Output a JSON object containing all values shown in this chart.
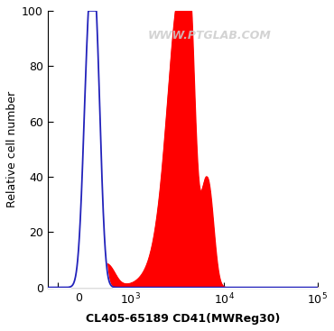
{
  "ylabel": "Relative cell number",
  "xlabel": "CL405-65189 CD41(MWReg30)",
  "ylim": [
    0,
    100
  ],
  "yticks": [
    0,
    20,
    40,
    60,
    80,
    100
  ],
  "watermark": "WWW.PTGLAB.COM",
  "blue_color": "#2222BB",
  "red_color": "#FF0000",
  "background_color": "#ffffff",
  "linthresh": 1000,
  "linscale": 0.5,
  "xlim_min": -600,
  "xlim_max": 100000,
  "blue_peaks": [
    {
      "mu": 180,
      "sigma": 100,
      "amp": 76
    },
    {
      "mu": 330,
      "sigma": 95,
      "amp": 79
    }
  ],
  "red_small_peaks": [
    {
      "mu": 130,
      "sigma": 85,
      "amp": 10
    },
    {
      "mu": 280,
      "sigma": 100,
      "amp": 15
    },
    {
      "mu": 550,
      "sigma": 140,
      "amp": 8
    }
  ],
  "red_main_peaks": [
    {
      "mu": 3000,
      "sigma": 700,
      "amp": 87
    },
    {
      "mu": 4200,
      "sigma": 600,
      "amp": 92
    },
    {
      "mu": 6500,
      "sigma": 1100,
      "amp": 40
    }
  ],
  "xtick_positions": [
    -400,
    0,
    1000,
    10000,
    100000
  ],
  "xtick_labels": [
    "",
    "0",
    "10$^3$",
    "10$^4$",
    "10$^5$"
  ]
}
